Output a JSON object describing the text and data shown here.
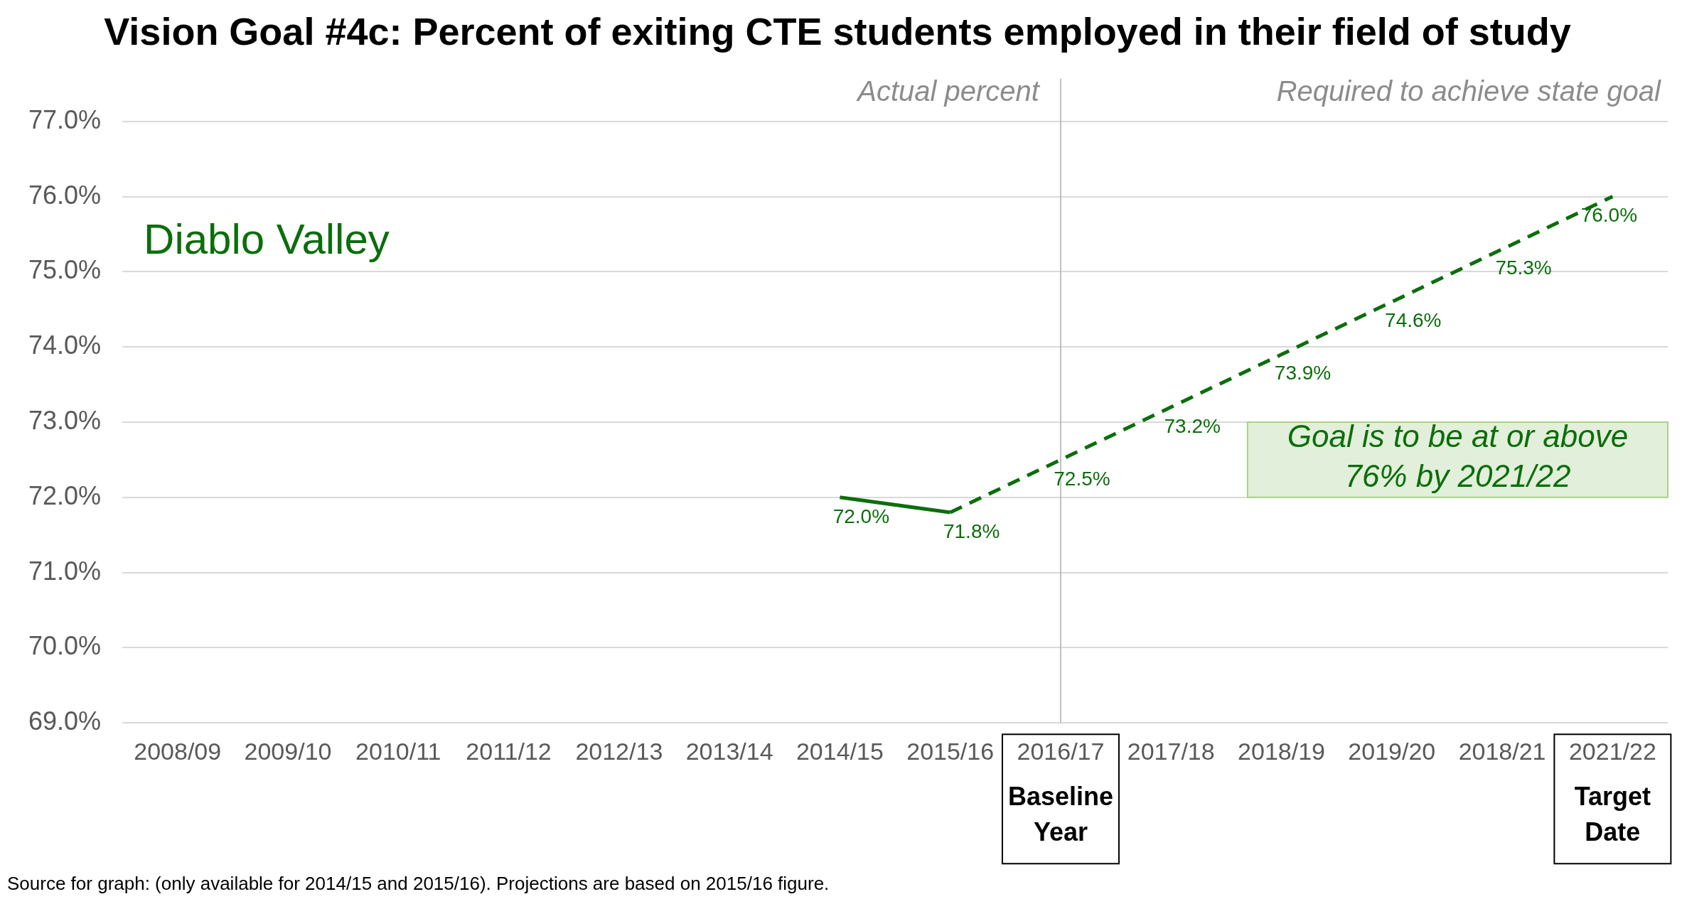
{
  "chart_data": {
    "type": "line",
    "title": "Vision Goal #4c: Percent of exiting CTE students employed in their field of study",
    "subtitle": "Diablo Valley",
    "categories": [
      "2008/09",
      "2009/10",
      "2010/11",
      "2011/12",
      "2012/13",
      "2013/14",
      "2014/15",
      "2015/16",
      "2016/17",
      "2017/18",
      "2018/19",
      "2019/20",
      "2018/21",
      "2021/22"
    ],
    "series": [
      {
        "color": "#0b6e0b",
        "line_style": "solid",
        "values": [
          null,
          null,
          null,
          null,
          null,
          null,
          72.0,
          71.8,
          null,
          null,
          null,
          null,
          null,
          null
        ],
        "value_labels": [
          null,
          null,
          null,
          null,
          null,
          null,
          "72.0%",
          "71.8%",
          null,
          null,
          null,
          null,
          null,
          null
        ]
      },
      {
        "color": "#0b6e0b",
        "line_style": "dashed",
        "values": [
          null,
          null,
          null,
          null,
          null,
          null,
          null,
          71.8,
          72.5,
          73.2,
          73.9,
          74.6,
          75.3,
          76.0
        ],
        "value_labels": [
          null,
          null,
          null,
          null,
          null,
          null,
          null,
          null,
          "72.5%",
          "73.2%",
          "73.9%",
          "74.6%",
          "75.3%",
          "76.0%"
        ]
      }
    ],
    "ylim": [
      69,
      77
    ],
    "yticks": [
      {
        "value": 69,
        "label": "69.0%"
      },
      {
        "value": 70,
        "label": "70.0%"
      },
      {
        "value": 71,
        "label": "71.0%"
      },
      {
        "value": 72,
        "label": "72.0%"
      },
      {
        "value": 73,
        "label": "73.0%"
      },
      {
        "value": 74,
        "label": "74.0%"
      },
      {
        "value": 75,
        "label": "75.0%"
      },
      {
        "value": 76,
        "label": "76.0%"
      },
      {
        "value": 77,
        "label": "77.0%"
      }
    ],
    "grid": "y",
    "legend": false,
    "marker": "none",
    "ref_lines": [
      {
        "axis": "x",
        "value": "2016/17",
        "color": "#bfbfbf"
      }
    ],
    "annotations": [
      "Actual percent",
      "Required to achieve state goal",
      "Goal is to be at or above 76% by 2021/22",
      "Baseline Year",
      "Target Date",
      "Source for graph: (only available for 2014/15 and 2015/16). Projections are based on 2015/16 figure."
    ]
  }
}
